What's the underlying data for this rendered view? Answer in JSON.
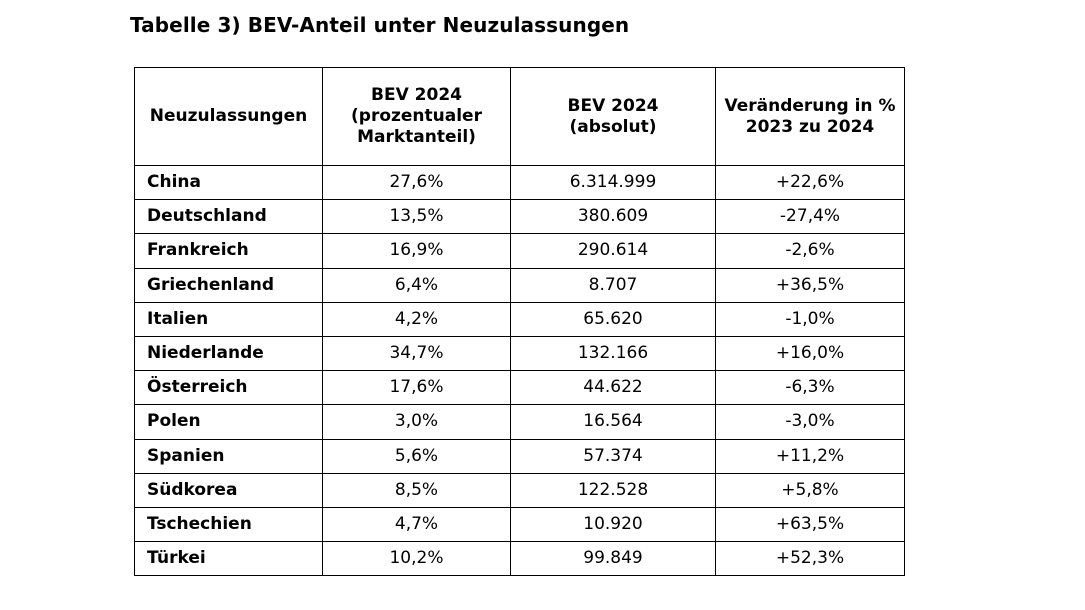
{
  "title": "Tabelle 3) BEV-Anteil unter Neuzulassungen",
  "table": {
    "headers": [
      {
        "lines": [
          "Neuzulassungen"
        ]
      },
      {
        "lines": [
          "BEV 2024",
          "(prozentualer",
          "Marktanteil)"
        ]
      },
      {
        "lines": [
          "BEV 2024",
          "(absolut)"
        ]
      },
      {
        "lines": [
          "Veränderung in %",
          "2023 zu 2024"
        ]
      }
    ],
    "rows": [
      {
        "country": "China",
        "share": "27,6%",
        "absolute": "6.314.999",
        "change": "+22,6%"
      },
      {
        "country": "Deutschland",
        "share": "13,5%",
        "absolute": "380.609",
        "change": "-27,4%"
      },
      {
        "country": "Frankreich",
        "share": "16,9%",
        "absolute": "290.614",
        "change": "-2,6%"
      },
      {
        "country": "Griechenland",
        "share": "6,4%",
        "absolute": "8.707",
        "change": "+36,5%"
      },
      {
        "country": "Italien",
        "share": "4,2%",
        "absolute": "65.620",
        "change": "-1,0%"
      },
      {
        "country": "Niederlande",
        "share": "34,7%",
        "absolute": "132.166",
        "change": "+16,0%"
      },
      {
        "country": "Österreich",
        "share": "17,6%",
        "absolute": "44.622",
        "change": "-6,3%"
      },
      {
        "country": "Polen",
        "share": "3,0%",
        "absolute": "16.564",
        "change": "-3,0%"
      },
      {
        "country": "Spanien",
        "share": "5,6%",
        "absolute": "57.374",
        "change": "+11,2%"
      },
      {
        "country": "Südkorea",
        "share": "8,5%",
        "absolute": "122.528",
        "change": "+5,8%"
      },
      {
        "country": "Tschechien",
        "share": "4,7%",
        "absolute": "10.920",
        "change": "+63,5%"
      },
      {
        "country": "Türkei",
        "share": "10,2%",
        "absolute": "99.849",
        "change": "+52,3%"
      }
    ]
  }
}
